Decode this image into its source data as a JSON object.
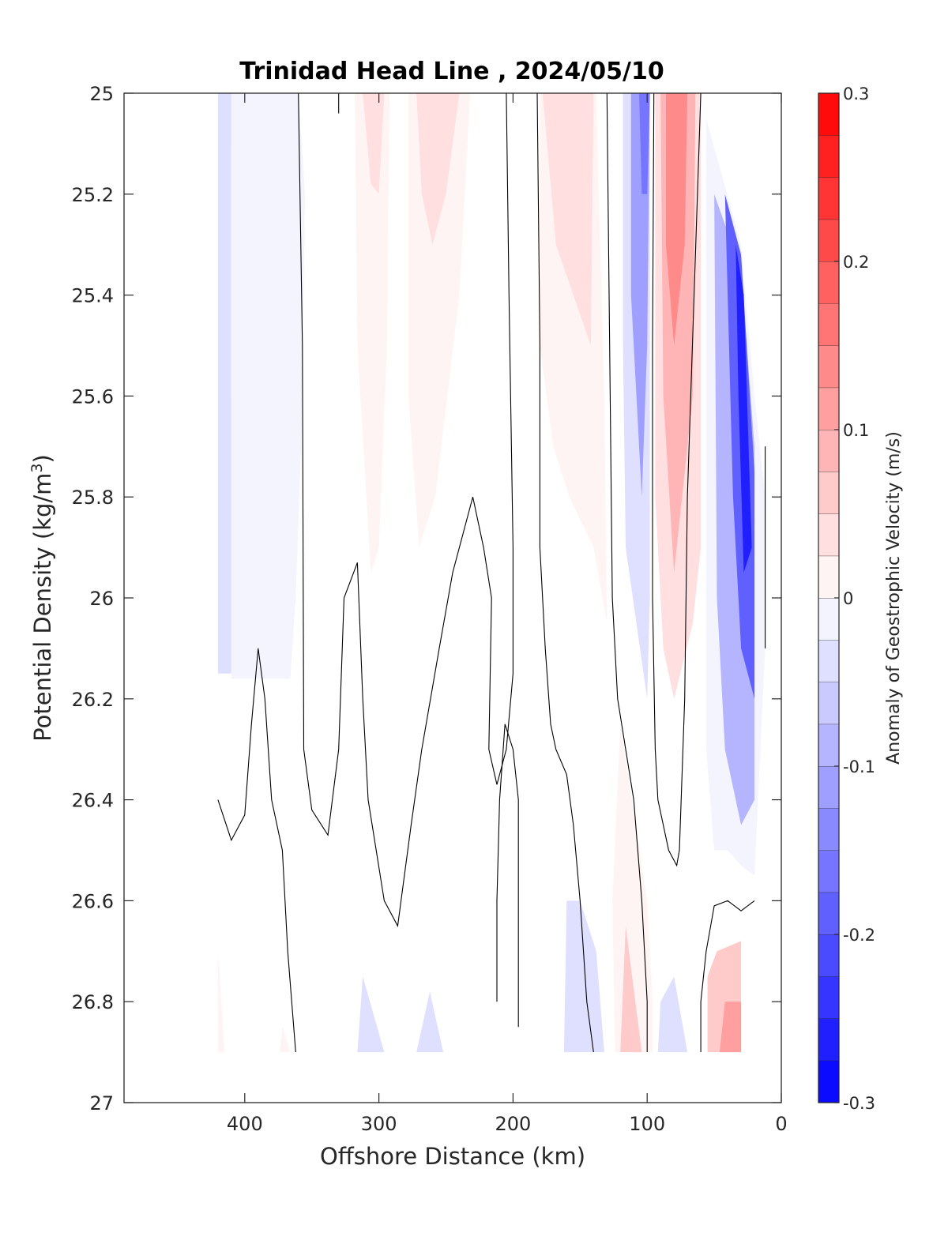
{
  "chart_data": {
    "type": "contour",
    "title": "Trinidad Head Line , 2024/05/10",
    "xlabel": "Offshore Distance (km)",
    "ylabel": "Potential Density (kg/m³)",
    "ylabel_base": "Potential Density (kg/m",
    "ylabel_sup": "3",
    "ylabel_end": ")",
    "xlim": [
      490,
      0
    ],
    "ylim": [
      25,
      27
    ],
    "y_reversed": true,
    "x_reversed": true,
    "x_ticks": [
      400,
      300,
      200,
      100,
      0
    ],
    "x_tick_labels": [
      "400",
      "300",
      "200",
      "100",
      "0"
    ],
    "y_ticks": [
      25,
      25.2,
      25.4,
      25.6,
      25.8,
      26,
      26.2,
      26.4,
      26.6,
      26.8,
      27
    ],
    "y_tick_labels": [
      "25",
      "25.2",
      "25.4",
      "25.6",
      "25.8",
      "26",
      "26.2",
      "26.4",
      "26.6",
      "26.8",
      "27"
    ],
    "colorbar": {
      "label": "Anomaly of Geostrophic Velocity (m/s)",
      "range": [
        -0.3,
        0.3
      ],
      "step": 0.025,
      "ticks": [
        0.3,
        0.2,
        0.1,
        0,
        -0.1,
        -0.2,
        -0.3
      ],
      "tick_labels": [
        "0.3",
        "0.2",
        "0.1",
        "0",
        "-0.1",
        "-0.2",
        "-0.3"
      ],
      "colormap": "blue-white-red",
      "color_negative": "#0000ff",
      "color_positive": "#ff0000",
      "color_zero": "#ffffff"
    },
    "regions": [
      {
        "value": -0.0375,
        "points": [
          [
            420,
            25
          ],
          [
            410,
            25
          ],
          [
            410,
            26.15
          ],
          [
            420,
            26.15
          ]
        ]
      },
      {
        "value": -0.0125,
        "points": [
          [
            410,
            25
          ],
          [
            360,
            25
          ],
          [
            355,
            25.2
          ],
          [
            358,
            25.7
          ],
          [
            362,
            26
          ],
          [
            366,
            26.16
          ],
          [
            410,
            26.16
          ]
        ]
      },
      {
        "value": 0.0125,
        "points": [
          [
            318,
            25
          ],
          [
            292,
            25
          ],
          [
            294,
            25.5
          ],
          [
            300,
            25.9
          ],
          [
            306,
            25.95
          ],
          [
            316,
            25.5
          ]
        ]
      },
      {
        "value": 0.0375,
        "points": [
          [
            312,
            25
          ],
          [
            296,
            25
          ],
          [
            300,
            25.2
          ],
          [
            306,
            25.18
          ]
        ]
      },
      {
        "value": 0.0125,
        "points": [
          [
            278,
            25
          ],
          [
            232,
            25
          ],
          [
            240,
            25.4
          ],
          [
            258,
            25.8
          ],
          [
            270,
            25.9
          ],
          [
            278,
            25.6
          ]
        ]
      },
      {
        "value": 0.0375,
        "points": [
          [
            272,
            25
          ],
          [
            240,
            25
          ],
          [
            250,
            25.2
          ],
          [
            260,
            25.3
          ],
          [
            268,
            25.2
          ]
        ]
      },
      {
        "value": 0.0125,
        "points": [
          [
            180,
            25
          ],
          [
            138,
            25
          ],
          [
            132,
            25.6
          ],
          [
            130,
            26.05
          ],
          [
            140,
            25.9
          ],
          [
            158,
            25.8
          ],
          [
            170,
            25.7
          ],
          [
            180,
            25.5
          ]
        ]
      },
      {
        "value": 0.0375,
        "points": [
          [
            178,
            25
          ],
          [
            140,
            25
          ],
          [
            142,
            25.5
          ],
          [
            155,
            25.4
          ],
          [
            168,
            25.3
          ]
        ]
      },
      {
        "value": -0.0375,
        "points": [
          [
            118,
            25
          ],
          [
            98,
            25
          ],
          [
            98,
            26
          ],
          [
            100,
            26.2
          ],
          [
            108,
            26.05
          ],
          [
            116,
            25.9
          ],
          [
            118,
            25.5
          ]
        ]
      },
      {
        "value": -0.1125,
        "points": [
          [
            112,
            25
          ],
          [
            98,
            25
          ],
          [
            100,
            25.5
          ],
          [
            104,
            25.8
          ],
          [
            112,
            25.4
          ]
        ]
      },
      {
        "value": -0.1625,
        "points": [
          [
            106,
            25
          ],
          [
            98,
            25
          ],
          [
            100,
            25.2
          ],
          [
            104,
            25.2
          ]
        ]
      },
      {
        "value": 0.0375,
        "points": [
          [
            94,
            25
          ],
          [
            60,
            25
          ],
          [
            60,
            25.9
          ],
          [
            66,
            26.05
          ],
          [
            80,
            26.2
          ],
          [
            88,
            26.1
          ],
          [
            94,
            25.8
          ]
        ]
      },
      {
        "value": 0.0875,
        "points": [
          [
            90,
            25
          ],
          [
            64,
            25
          ],
          [
            66,
            25.6
          ],
          [
            80,
            25.95
          ],
          [
            88,
            25.6
          ]
        ]
      },
      {
        "value": 0.1375,
        "points": [
          [
            86,
            25
          ],
          [
            70,
            25
          ],
          [
            72,
            25.3
          ],
          [
            80,
            25.5
          ],
          [
            86,
            25.3
          ]
        ]
      },
      {
        "value": -0.0125,
        "points": [
          [
            56,
            25.05
          ],
          [
            30,
            25.3
          ],
          [
            20,
            25.6
          ],
          [
            12,
            25.8
          ],
          [
            12,
            26.1
          ],
          [
            20,
            26.55
          ],
          [
            30,
            26.53
          ],
          [
            40,
            26.5
          ],
          [
            50,
            26.5
          ],
          [
            56,
            26.3
          ]
        ]
      },
      {
        "value": -0.0875,
        "points": [
          [
            50,
            25.2
          ],
          [
            30,
            25.35
          ],
          [
            20,
            25.7
          ],
          [
            20,
            26.4
          ],
          [
            30,
            26.45
          ],
          [
            42,
            26.3
          ],
          [
            48,
            26
          ]
        ]
      },
      {
        "value": -0.1875,
        "points": [
          [
            42,
            25.2
          ],
          [
            30,
            25.32
          ],
          [
            20,
            25.75
          ],
          [
            20,
            26.2
          ],
          [
            30,
            26.1
          ],
          [
            36,
            25.8
          ],
          [
            40,
            25.4
          ]
        ]
      },
      {
        "value": -0.2625,
        "points": [
          [
            34,
            25.3
          ],
          [
            28,
            25.4
          ],
          [
            22,
            25.9
          ],
          [
            28,
            25.95
          ],
          [
            32,
            25.6
          ]
        ]
      },
      {
        "value": 0.0125,
        "points": [
          [
            120,
            26.25
          ],
          [
            100,
            26.6
          ],
          [
            96,
            26.8
          ],
          [
            96,
            26.9
          ],
          [
            124,
            26.9
          ],
          [
            126,
            26.6
          ]
        ]
      },
      {
        "value": 0.0625,
        "points": [
          [
            116,
            26.65
          ],
          [
            104,
            26.9
          ],
          [
            120,
            26.9
          ]
        ]
      },
      {
        "value": -0.0375,
        "points": [
          [
            160,
            26.6
          ],
          [
            162,
            26.9
          ],
          [
            132,
            26.9
          ],
          [
            138,
            26.7
          ],
          [
            150,
            26.6
          ]
        ]
      },
      {
        "value": -0.0375,
        "points": [
          [
            90,
            26.8
          ],
          [
            80,
            26.75
          ],
          [
            70,
            26.9
          ],
          [
            92,
            26.9
          ]
        ]
      },
      {
        "value": 0.0625,
        "points": [
          [
            55,
            26.75
          ],
          [
            48,
            26.7
          ],
          [
            30,
            26.68
          ],
          [
            30,
            26.9
          ],
          [
            55,
            26.9
          ]
        ]
      },
      {
        "value": 0.1125,
        "points": [
          [
            42,
            26.8
          ],
          [
            30,
            26.8
          ],
          [
            30,
            26.9
          ],
          [
            46,
            26.9
          ]
        ]
      },
      {
        "value": 0.0125,
        "points": [
          [
            420,
            26.7
          ],
          [
            415,
            26.9
          ],
          [
            420,
            26.9
          ]
        ]
      },
      {
        "value": 0.0125,
        "points": [
          [
            372,
            26.85
          ],
          [
            366,
            26.9
          ],
          [
            374,
            26.9
          ]
        ]
      },
      {
        "value": -0.0375,
        "points": [
          [
            312,
            26.75
          ],
          [
            296,
            26.9
          ],
          [
            316,
            26.9
          ]
        ]
      },
      {
        "value": -0.0375,
        "points": [
          [
            262,
            26.78
          ],
          [
            252,
            26.9
          ],
          [
            272,
            26.9
          ]
        ]
      }
    ],
    "contour_lines": [
      {
        "value": 0,
        "points": [
          [
            420,
            26.4
          ],
          [
            410,
            26.48
          ],
          [
            400,
            26.43
          ],
          [
            395,
            26.25
          ],
          [
            390,
            26.1
          ],
          [
            385,
            26.2
          ],
          [
            380,
            26.4
          ],
          [
            372,
            26.5
          ],
          [
            368,
            26.7
          ],
          [
            362,
            26.9
          ]
        ]
      },
      {
        "value": 0,
        "points": [
          [
            360,
            25
          ],
          [
            357,
            25.5
          ],
          [
            356,
            26.3
          ],
          [
            350,
            26.42
          ],
          [
            338,
            26.47
          ],
          [
            330,
            26.3
          ],
          [
            326,
            26
          ],
          [
            316,
            25.93
          ],
          [
            312,
            26.2
          ],
          [
            308,
            26.4
          ],
          [
            302,
            26.5
          ],
          [
            296,
            26.6
          ],
          [
            286,
            26.65
          ],
          [
            276,
            26.45
          ],
          [
            268,
            26.3
          ],
          [
            255,
            26.1
          ],
          [
            245,
            25.95
          ],
          [
            230,
            25.8
          ],
          [
            222,
            25.9
          ],
          [
            216,
            26
          ],
          [
            218,
            26.3
          ],
          [
            212,
            26.37
          ],
          [
            205,
            26.3
          ],
          [
            200,
            26.15
          ],
          [
            200,
            25.9
          ],
          [
            203,
            25.4
          ],
          [
            205,
            25
          ]
        ]
      },
      {
        "value": 0,
        "points": [
          [
            330,
            25
          ],
          [
            330,
            25.04
          ]
        ]
      },
      {
        "value": 0,
        "points": [
          [
            182,
            25
          ],
          [
            180,
            25.5
          ],
          [
            180,
            25.9
          ],
          [
            176,
            26.1
          ],
          [
            172,
            26.25
          ],
          [
            168,
            26.3
          ],
          [
            160,
            26.35
          ],
          [
            155,
            26.45
          ],
          [
            150,
            26.6
          ],
          [
            145,
            26.8
          ],
          [
            140,
            26.9
          ]
        ]
      },
      {
        "value": 0,
        "points": [
          [
            196,
            26.85
          ],
          [
            196,
            26.4
          ],
          [
            200,
            26.3
          ],
          [
            206,
            26.25
          ],
          [
            210,
            26.4
          ],
          [
            212,
            26.6
          ],
          [
            212,
            26.8
          ]
        ]
      },
      {
        "value": 0,
        "points": [
          [
            130,
            25
          ],
          [
            128,
            25.5
          ],
          [
            126,
            26
          ],
          [
            122,
            26.2
          ],
          [
            116,
            26.3
          ],
          [
            110,
            26.4
          ],
          [
            104,
            26.6
          ],
          [
            100,
            26.8
          ],
          [
            100,
            26.9
          ]
        ]
      },
      {
        "value": 0,
        "points": [
          [
            95,
            25
          ],
          [
            96,
            25.5
          ],
          [
            96,
            26
          ],
          [
            94,
            26.3
          ],
          [
            92,
            26.4
          ],
          [
            84,
            26.5
          ],
          [
            78,
            26.53
          ],
          [
            76,
            26.5
          ],
          [
            72,
            26.2
          ],
          [
            70,
            25.8
          ],
          [
            60,
            25
          ]
        ]
      },
      {
        "value": 0,
        "points": [
          [
            12,
            25.7
          ],
          [
            12,
            26.1
          ]
        ]
      },
      {
        "value": 0,
        "points": [
          [
            20,
            26.6
          ],
          [
            30,
            26.62
          ],
          [
            40,
            26.6
          ],
          [
            50,
            26.61
          ],
          [
            56,
            26.7
          ],
          [
            60,
            26.8
          ],
          [
            60,
            26.9
          ]
        ]
      }
    ]
  }
}
